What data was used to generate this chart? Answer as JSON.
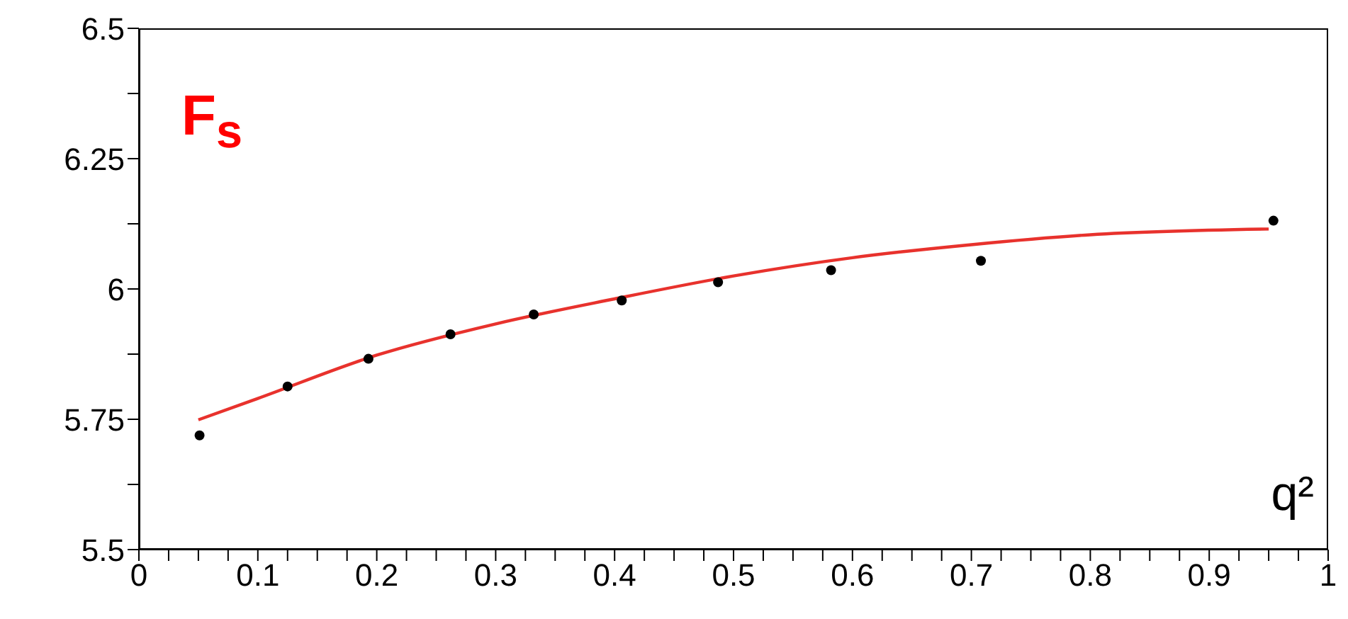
{
  "chart_data": {
    "type": "scatter",
    "title": "F$_{s}$",
    "xlabel": "q²",
    "xlim": [
      0,
      1
    ],
    "ylim": [
      5.5,
      6.5
    ],
    "xticks": [
      0,
      {
        "value": 0.025,
        "label": null
      },
      {
        "value": 0.05,
        "label": null
      },
      {
        "value": 0.075,
        "label": null
      },
      0.1,
      {
        "value": 0.125,
        "label": null
      },
      {
        "value": 0.15,
        "label": null
      },
      {
        "value": 0.175,
        "label": null
      },
      0.2,
      {
        "value": 0.225,
        "label": null
      },
      {
        "value": 0.25,
        "label": null
      },
      {
        "value": 0.275,
        "label": null
      },
      0.3,
      {
        "value": 0.325,
        "label": null
      },
      {
        "value": 0.35,
        "label": null
      },
      {
        "value": 0.375,
        "label": null
      },
      0.4,
      {
        "value": 0.425,
        "label": null
      },
      {
        "value": 0.45,
        "label": null
      },
      {
        "value": 0.475,
        "label": null
      },
      0.5,
      {
        "value": 0.525,
        "label": null
      },
      {
        "value": 0.55,
        "label": null
      },
      {
        "value": 0.575,
        "label": null
      },
      0.6,
      {
        "value": 0.625,
        "label": null
      },
      {
        "value": 0.65,
        "label": null
      },
      {
        "value": 0.675,
        "label": null
      },
      0.7,
      {
        "value": 0.725,
        "label": null
      },
      {
        "value": 0.75,
        "label": null
      },
      {
        "value": 0.775,
        "label": null
      },
      0.8,
      {
        "value": 0.825,
        "label": null
      },
      {
        "value": 0.85,
        "label": null
      },
      {
        "value": 0.875,
        "label": null
      },
      0.9,
      {
        "value": 0.925,
        "label": null
      },
      {
        "value": 0.95,
        "label": null
      },
      {
        "value": 0.975,
        "label": null
      },
      1
    ],
    "yticks": [
      5.5,
      {
        "value": 5.625,
        "label": null
      },
      5.75,
      {
        "value": 5.875,
        "label": null
      },
      6,
      {
        "value": 6.125,
        "label": null
      },
      6.25,
      {
        "value": 6.375,
        "label": null
      },
      6.5
    ],
    "grid": false,
    "legend": false,
    "series": [
      {
        "marker": "circle",
        "color": "#000000",
        "x": [
          0.051,
          0.125,
          0.193,
          0.262,
          0.332,
          0.406,
          0.487,
          0.582,
          0.708,
          0.954
        ],
        "values": [
          5.719,
          5.813,
          5.866,
          5.913,
          5.951,
          5.978,
          6.013,
          6.036,
          6.054,
          6.131
        ]
      },
      {
        "type": "line",
        "line_style": "solid",
        "color": "#e8322d",
        "x": [
          0.05,
          0.1,
          0.2,
          0.3,
          0.4,
          0.5,
          0.6,
          0.7,
          0.8,
          0.95
        ],
        "values": [
          5.749,
          5.79,
          5.873,
          5.933,
          5.981,
          6.025,
          6.06,
          6.085,
          6.104,
          6.115
        ]
      }
    ]
  }
}
